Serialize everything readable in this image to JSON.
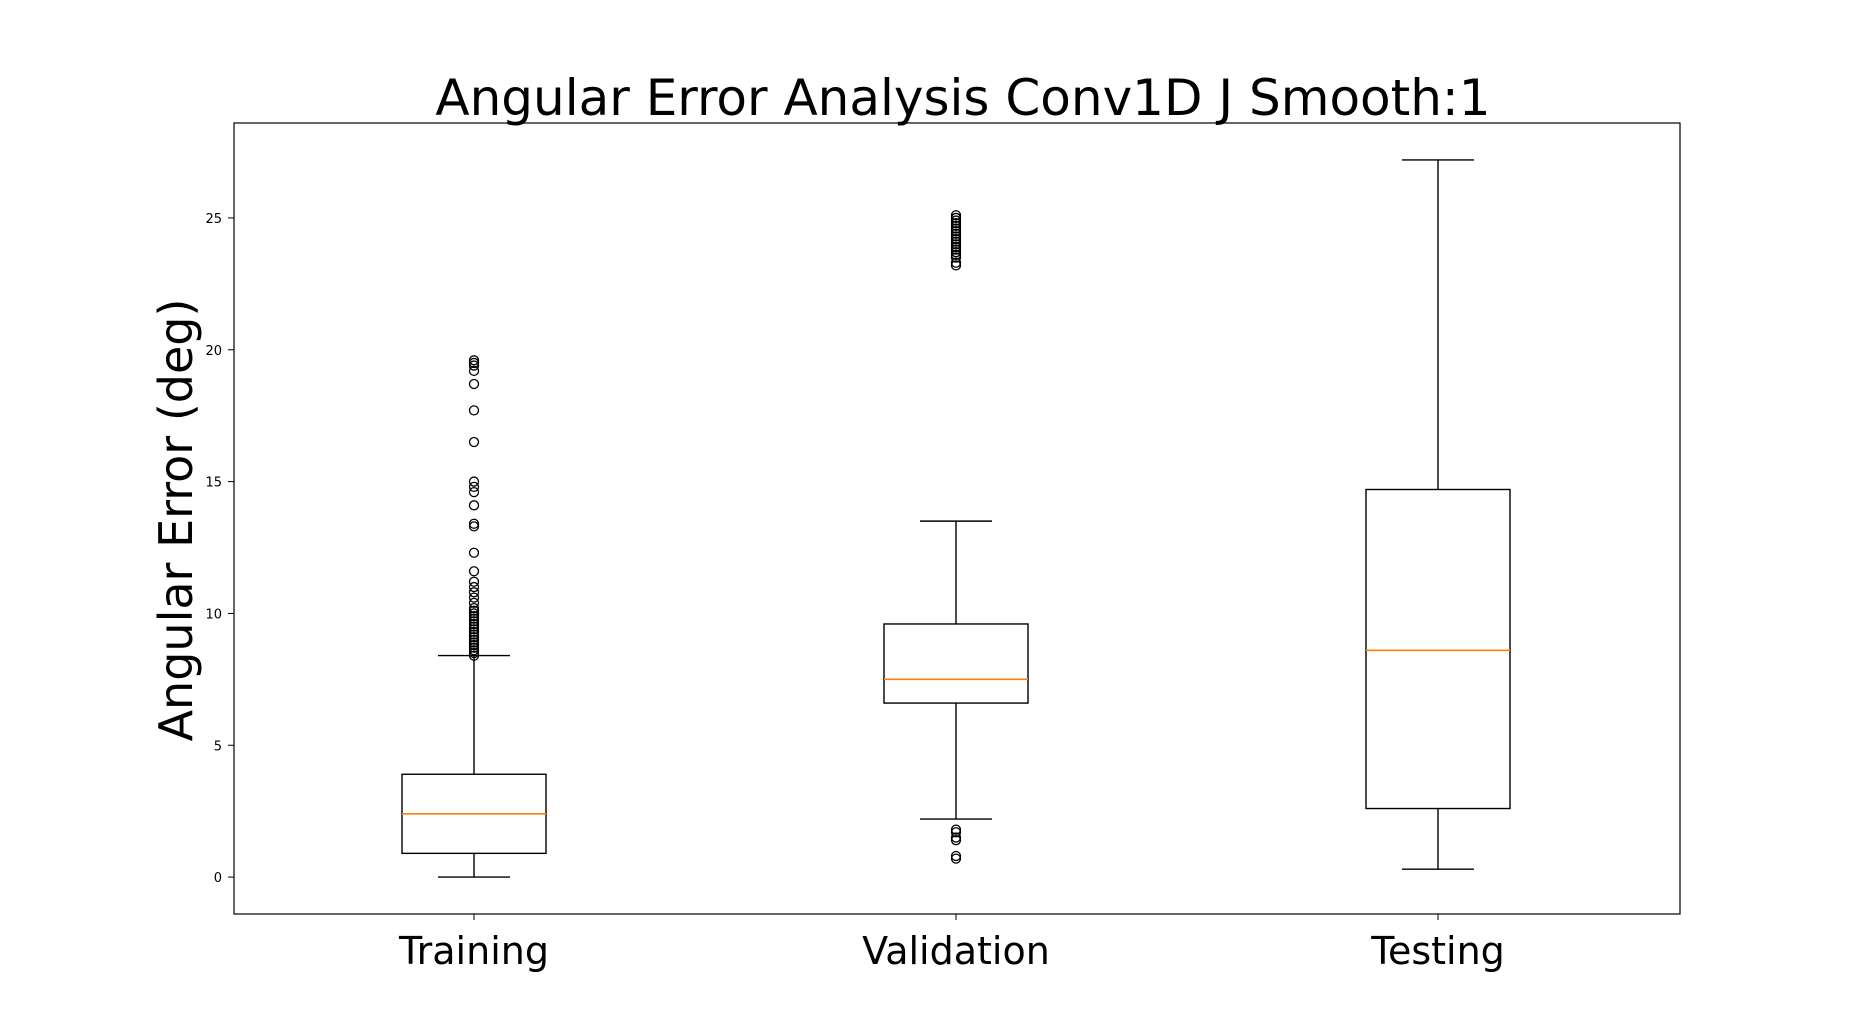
{
  "chart_data": {
    "type": "box",
    "title": "Angular Error Analysis Conv1D J Smooth:1",
    "xlabel": "",
    "ylabel": "Angular Error (deg)",
    "ylim": [
      -1.4,
      28.6
    ],
    "yticks": [
      0,
      5,
      10,
      15,
      20,
      25
    ],
    "grid": false,
    "median_color": "#ff7f0e",
    "categories": [
      "Training",
      "Validation",
      "Testing"
    ],
    "boxes": [
      {
        "label": "Training",
        "whisker_low": 0.0,
        "q1": 0.9,
        "median": 2.4,
        "q3": 3.9,
        "whisker_high": 8.4,
        "outliers": [
          8.4,
          8.5,
          8.6,
          8.7,
          8.8,
          8.9,
          9.0,
          9.1,
          9.2,
          9.3,
          9.4,
          9.5,
          9.6,
          9.7,
          9.8,
          9.9,
          10.0,
          10.1,
          10.2,
          10.4,
          10.6,
          10.8,
          11.0,
          11.2,
          11.6,
          12.3,
          13.3,
          13.4,
          14.1,
          14.6,
          14.8,
          15.0,
          16.5,
          17.7,
          18.7,
          19.2,
          19.4,
          19.5,
          19.6
        ]
      },
      {
        "label": "Validation",
        "whisker_low": 2.2,
        "q1": 6.6,
        "median": 7.5,
        "q3": 9.6,
        "whisker_high": 13.5,
        "outliers": [
          0.7,
          0.8,
          1.4,
          1.5,
          1.7,
          1.8,
          23.2,
          23.3,
          23.5,
          23.6,
          23.7,
          23.8,
          23.9,
          24.0,
          24.1,
          24.2,
          24.3,
          24.4,
          24.5,
          24.6,
          24.7,
          24.8,
          24.9,
          25.0,
          25.1
        ]
      },
      {
        "label": "Testing",
        "whisker_low": 0.3,
        "q1": 2.6,
        "median": 8.6,
        "q3": 14.7,
        "whisker_high": 27.2,
        "outliers": []
      }
    ]
  }
}
